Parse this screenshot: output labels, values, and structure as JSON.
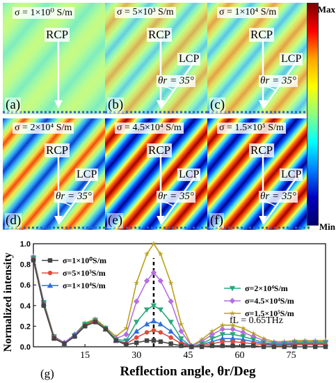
{
  "colorbar": {
    "max_label": "Max",
    "min_label": "Min",
    "colors": [
      "#7a0000",
      "#ff0000",
      "#ffa500",
      "#ffff00",
      "#8cff80",
      "#00ffff",
      "#0080ff",
      "#0000c0",
      "#00006a"
    ]
  },
  "panels": [
    {
      "id": "a",
      "label": "(a)",
      "sigma": "σ = 1×10⁰ S/m",
      "rcp": "RCP",
      "lcp": "",
      "theta": "",
      "contrast": 0.05
    },
    {
      "id": "b",
      "label": "(b)",
      "sigma": "σ = 5×10³ S/m",
      "rcp": "RCP",
      "lcp": "LCP",
      "theta": "θr = 35°",
      "contrast": 0.18
    },
    {
      "id": "c",
      "label": "(c)",
      "sigma": "σ = 1×10⁴ S/m",
      "rcp": "RCP",
      "lcp": "LCP",
      "theta": "θr = 35°",
      "contrast": 0.32
    },
    {
      "id": "d",
      "label": "(d)",
      "sigma": "σ = 2×10⁴ S/m",
      "rcp": "RCP",
      "lcp": "LCP",
      "theta": "θr = 35°",
      "contrast": 0.55
    },
    {
      "id": "e",
      "label": "(e)",
      "sigma": "σ = 4.5×10⁴ S/m",
      "rcp": "RCP",
      "lcp": "LCP",
      "theta": "θr = 35°",
      "contrast": 0.85
    },
    {
      "id": "f",
      "label": "(f)",
      "sigma": "σ = 1.5×10⁵ S/m",
      "rcp": "RCP",
      "lcp": "LCP",
      "theta": "θr = 35°",
      "contrast": 1.0
    }
  ],
  "chart_data": {
    "type": "line",
    "panel_label": "(g)",
    "xlabel": "Reflection angle, θr/Deg",
    "ylabel": "Normalized intensity",
    "xlim": [
      0,
      85
    ],
    "ylim": [
      0,
      1.0
    ],
    "xticks": [
      15,
      30,
      45,
      60,
      75
    ],
    "yticks": [
      0.0,
      0.2,
      0.4,
      0.6,
      0.8,
      1.0
    ],
    "annotation": "fL = 0.65THz",
    "reference_line_x": 35,
    "x": [
      0,
      3,
      6,
      9,
      12,
      15,
      18,
      21,
      24,
      27,
      30,
      33,
      35,
      37,
      40,
      43,
      46,
      49,
      52,
      55,
      58,
      61,
      64,
      67,
      70,
      73,
      76,
      79,
      82,
      85
    ],
    "series": [
      {
        "name": "σ=1×10⁰S/m",
        "color": "#444444",
        "marker": "square",
        "values": [
          0.84,
          0.4,
          0.08,
          0.03,
          0.1,
          0.2,
          0.24,
          0.17,
          0.06,
          0.02,
          0.04,
          0.06,
          0.06,
          0.05,
          0.03,
          0.01,
          0.0,
          0.0,
          0.01,
          0.01,
          0.01,
          0.01,
          0.01,
          0.0,
          0.0,
          0.0,
          0.0,
          0.0,
          0.0,
          0.0
        ]
      },
      {
        "name": "σ=5×10³S/m",
        "color": "#e04a3a",
        "marker": "circle",
        "values": [
          0.85,
          0.41,
          0.09,
          0.03,
          0.1,
          0.21,
          0.25,
          0.17,
          0.06,
          0.03,
          0.09,
          0.14,
          0.16,
          0.14,
          0.09,
          0.03,
          0.0,
          0.01,
          0.03,
          0.05,
          0.05,
          0.04,
          0.03,
          0.02,
          0.01,
          0.01,
          0.02,
          0.02,
          0.02,
          0.02
        ]
      },
      {
        "name": "σ=1×10⁴S/m",
        "color": "#2e6fd6",
        "marker": "triangle-up",
        "values": [
          0.86,
          0.42,
          0.09,
          0.03,
          0.11,
          0.21,
          0.25,
          0.17,
          0.06,
          0.04,
          0.15,
          0.22,
          0.25,
          0.22,
          0.15,
          0.05,
          0.0,
          0.02,
          0.05,
          0.08,
          0.08,
          0.07,
          0.05,
          0.03,
          0.02,
          0.02,
          0.03,
          0.03,
          0.03,
          0.03
        ]
      },
      {
        "name": "σ=2×10⁴S/m",
        "color": "#2aa87a",
        "marker": "triangle-down",
        "values": [
          0.86,
          0.43,
          0.1,
          0.03,
          0.11,
          0.22,
          0.26,
          0.18,
          0.07,
          0.06,
          0.24,
          0.36,
          0.4,
          0.36,
          0.24,
          0.08,
          0.0,
          0.03,
          0.08,
          0.12,
          0.12,
          0.1,
          0.07,
          0.04,
          0.03,
          0.03,
          0.04,
          0.04,
          0.04,
          0.04
        ]
      },
      {
        "name": "σ=4.5×10⁴S/m",
        "color": "#b46ee0",
        "marker": "diamond",
        "values": [
          0.87,
          0.43,
          0.1,
          0.04,
          0.12,
          0.22,
          0.26,
          0.18,
          0.08,
          0.12,
          0.44,
          0.64,
          0.72,
          0.64,
          0.44,
          0.15,
          0.01,
          0.05,
          0.12,
          0.17,
          0.17,
          0.14,
          0.1,
          0.06,
          0.04,
          0.04,
          0.05,
          0.05,
          0.05,
          0.05
        ]
      },
      {
        "name": "σ=1.5×10⁵S/m",
        "color": "#b8a21a",
        "marker": "star",
        "values": [
          0.88,
          0.44,
          0.1,
          0.04,
          0.12,
          0.23,
          0.27,
          0.19,
          0.1,
          0.18,
          0.62,
          0.9,
          1.0,
          0.9,
          0.62,
          0.22,
          0.01,
          0.07,
          0.15,
          0.21,
          0.21,
          0.18,
          0.13,
          0.08,
          0.05,
          0.05,
          0.06,
          0.06,
          0.06,
          0.06
        ]
      }
    ]
  }
}
